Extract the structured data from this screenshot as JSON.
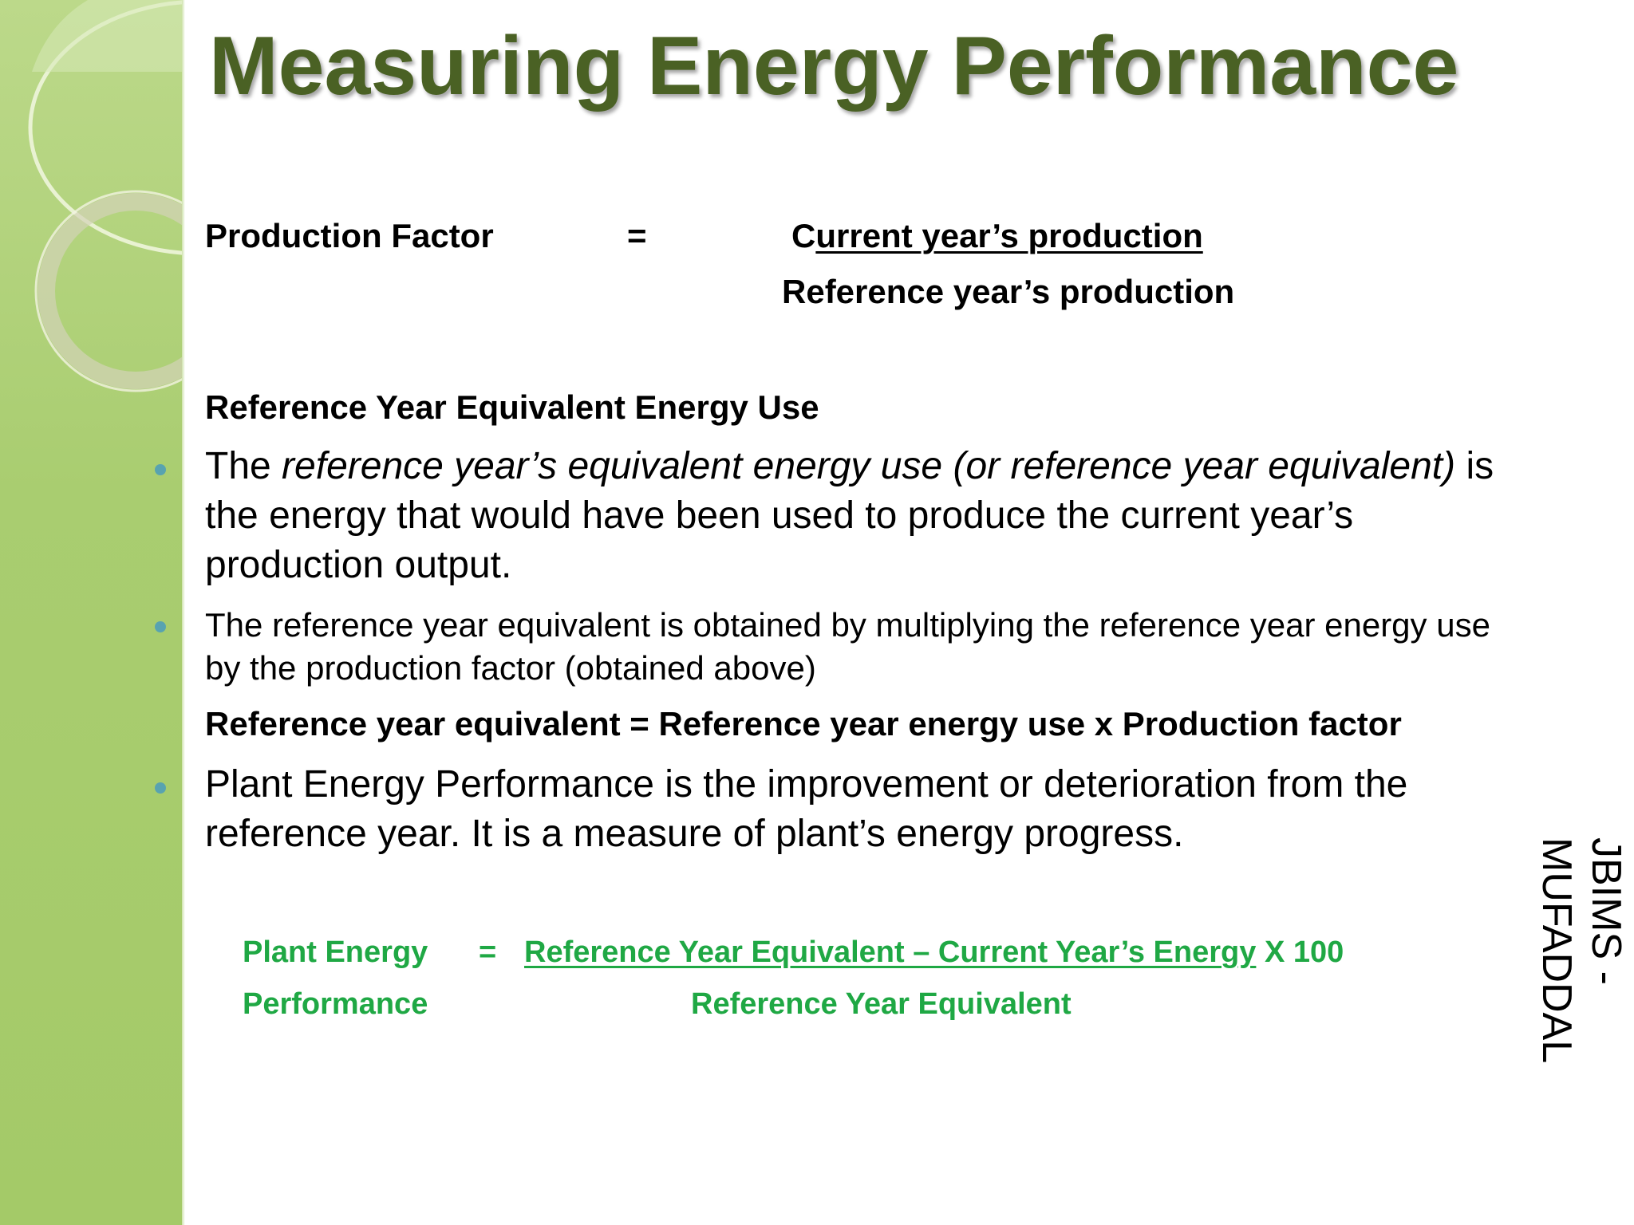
{
  "slide": {
    "title": "Measuring Energy Performance",
    "author": "JBIMS -\nMUFADDAL",
    "colors": {
      "title": "#4a6124",
      "sidebar": "#a9cd70",
      "formula_green": "#1fa844",
      "bullet": "#58a3b0"
    }
  },
  "production_factor": {
    "label": "Production Factor",
    "equals": "=",
    "numerator_first": "C",
    "numerator_rest": "urrent year’s production",
    "denominator": "Reference year’s production"
  },
  "section": {
    "heading": "Reference Year Equivalent Energy Use"
  },
  "bullets": [
    {
      "pre": "The ",
      "italic": "reference year’s equivalent energy use (or reference year equivalent)",
      "post_line1": " is",
      "line2": "the energy that would have been used to produce the current year’s",
      "line3": "production output."
    },
    {
      "line1": "The reference year equivalent is obtained by multiplying the reference year energy use",
      "line2": "by the production factor (obtained above)"
    },
    {
      "line1": "Plant Energy Performance is the improvement or deterioration from the",
      "line2": "reference year. It is a measure of plant’s energy progress."
    }
  ],
  "ref_equation": "Reference year equivalent = Reference year energy use x Production factor",
  "pep_formula": {
    "label_line1": "Plant Energy",
    "label_line2": "Performance",
    "equals": "=",
    "numerator": "Reference Year Equivalent – Current Year’s Energy",
    "multiplier": " X 100",
    "denominator": "Reference Year Equivalent"
  }
}
